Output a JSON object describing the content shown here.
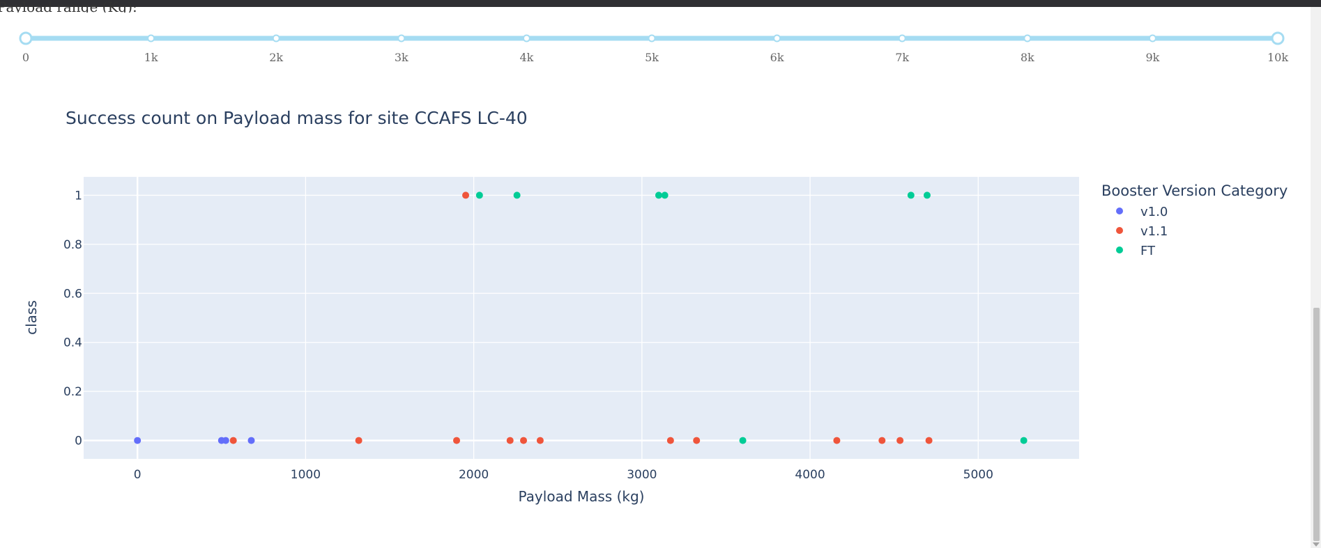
{
  "slider": {
    "label": "Payload range (Kg):",
    "min": 0,
    "max": 10000,
    "value": [
      0,
      10000
    ],
    "marks": [
      {
        "value": 0,
        "label": "0"
      },
      {
        "value": 1000,
        "label": "1k"
      },
      {
        "value": 2000,
        "label": "2k"
      },
      {
        "value": 3000,
        "label": "3k"
      },
      {
        "value": 4000,
        "label": "4k"
      },
      {
        "value": 5000,
        "label": "5k"
      },
      {
        "value": 6000,
        "label": "6k"
      },
      {
        "value": 7000,
        "label": "7k"
      },
      {
        "value": 8000,
        "label": "8k"
      },
      {
        "value": 9000,
        "label": "9k"
      },
      {
        "value": 10000,
        "label": "10k"
      }
    ],
    "track_color": "#a5dcf2"
  },
  "chart_data": {
    "type": "scatter",
    "title": "Success count on Payload mass for site CCAFS LC-40",
    "xlabel": "Payload Mass (kg)",
    "ylabel": "class",
    "xlim": [
      -320,
      5600
    ],
    "ylim": [
      -0.075,
      1.075
    ],
    "xticks": [
      0,
      1000,
      2000,
      3000,
      4000,
      5000
    ],
    "yticks": [
      0,
      0.2,
      0.4,
      0.6,
      0.8,
      1
    ],
    "ytick_labels": [
      "0",
      "0.2",
      "0.4",
      "0.6",
      "0.8",
      "1"
    ],
    "grid": true,
    "plot_bg": "#e5ecf6",
    "legend_title": "Booster Version Category",
    "legend_position": "right",
    "series": [
      {
        "name": "v1.0",
        "color": "#636efa",
        "points": [
          [
            0,
            0
          ],
          [
            500,
            0
          ],
          [
            525,
            0
          ],
          [
            677,
            0
          ]
        ]
      },
      {
        "name": "v1.1",
        "color": "#ef553b",
        "points": [
          [
            570,
            0
          ],
          [
            1316,
            0
          ],
          [
            1898,
            0
          ],
          [
            1952,
            1
          ],
          [
            2216,
            0
          ],
          [
            2296,
            0
          ],
          [
            2395,
            0
          ],
          [
            3170,
            0
          ],
          [
            3325,
            0
          ],
          [
            4159,
            0
          ],
          [
            4428,
            0
          ],
          [
            4535,
            0
          ],
          [
            4707,
            0
          ]
        ]
      },
      {
        "name": "FT",
        "color": "#00cc96",
        "points": [
          [
            2034,
            1
          ],
          [
            2257,
            1
          ],
          [
            3100,
            1
          ],
          [
            3136,
            1
          ],
          [
            3600,
            0
          ],
          [
            4600,
            1
          ],
          [
            4696,
            1
          ],
          [
            5271,
            0
          ]
        ]
      }
    ]
  }
}
